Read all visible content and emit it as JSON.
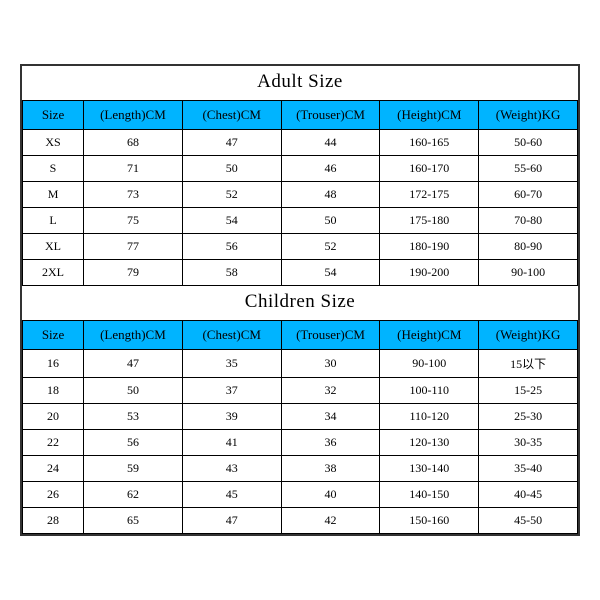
{
  "adult": {
    "title": "Adult Size",
    "columns": [
      "Size",
      "(Length)CM",
      "(Chest)CM",
      "(Trouser)CM",
      "(Height)CM",
      "(Weight)KG"
    ],
    "rows": [
      [
        "XS",
        "68",
        "47",
        "44",
        "160-165",
        "50-60"
      ],
      [
        "S",
        "71",
        "50",
        "46",
        "160-170",
        "55-60"
      ],
      [
        "M",
        "73",
        "52",
        "48",
        "172-175",
        "60-70"
      ],
      [
        "L",
        "75",
        "54",
        "50",
        "175-180",
        "70-80"
      ],
      [
        "XL",
        "77",
        "56",
        "52",
        "180-190",
        "80-90"
      ],
      [
        "2XL",
        "79",
        "58",
        "54",
        "190-200",
        "90-100"
      ]
    ]
  },
  "children": {
    "title": "Children Size",
    "columns": [
      "Size",
      "(Length)CM",
      "(Chest)CM",
      "(Trouser)CM",
      "(Height)CM",
      "(Weight)KG"
    ],
    "rows": [
      [
        "16",
        "47",
        "35",
        "30",
        "90-100",
        "15以下"
      ],
      [
        "18",
        "50",
        "37",
        "32",
        "100-110",
        "15-25"
      ],
      [
        "20",
        "53",
        "39",
        "34",
        "110-120",
        "25-30"
      ],
      [
        "22",
        "56",
        "41",
        "36",
        "120-130",
        "30-35"
      ],
      [
        "24",
        "59",
        "43",
        "38",
        "130-140",
        "35-40"
      ],
      [
        "26",
        "62",
        "45",
        "40",
        "140-150",
        "40-45"
      ],
      [
        "28",
        "65",
        "47",
        "42",
        "150-160",
        "45-50"
      ]
    ]
  },
  "style": {
    "header_bg": "#00b4ff",
    "border_color": "#000000",
    "title_fontsize": 19,
    "header_fontsize": 13,
    "cell_fontsize": 12,
    "font_family": "Times New Roman"
  }
}
